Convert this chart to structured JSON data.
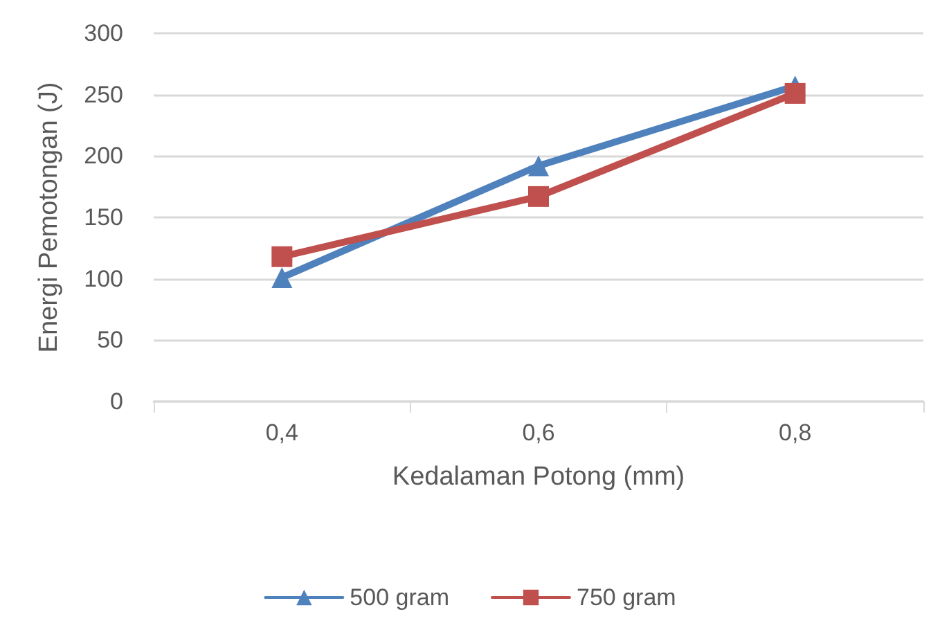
{
  "chart_data": {
    "type": "line",
    "xlabel": "Kedalaman Potong (mm)",
    "ylabel": "Energi Pemotongan (J)",
    "categories": [
      "0,4",
      "0,6",
      "0,8"
    ],
    "series": [
      {
        "name": "500 gram",
        "color": "#4f81bd",
        "marker": "triangle",
        "values": [
          101,
          192,
          257
        ]
      },
      {
        "name": "750 gram",
        "color": "#c0504d",
        "marker": "square",
        "values": [
          118,
          167,
          251
        ]
      }
    ],
    "ylim": [
      0,
      300
    ],
    "yticks": [
      0,
      50,
      100,
      150,
      200,
      250,
      300
    ],
    "grid": "y",
    "legend": "bottom",
    "line_style": "solid"
  }
}
